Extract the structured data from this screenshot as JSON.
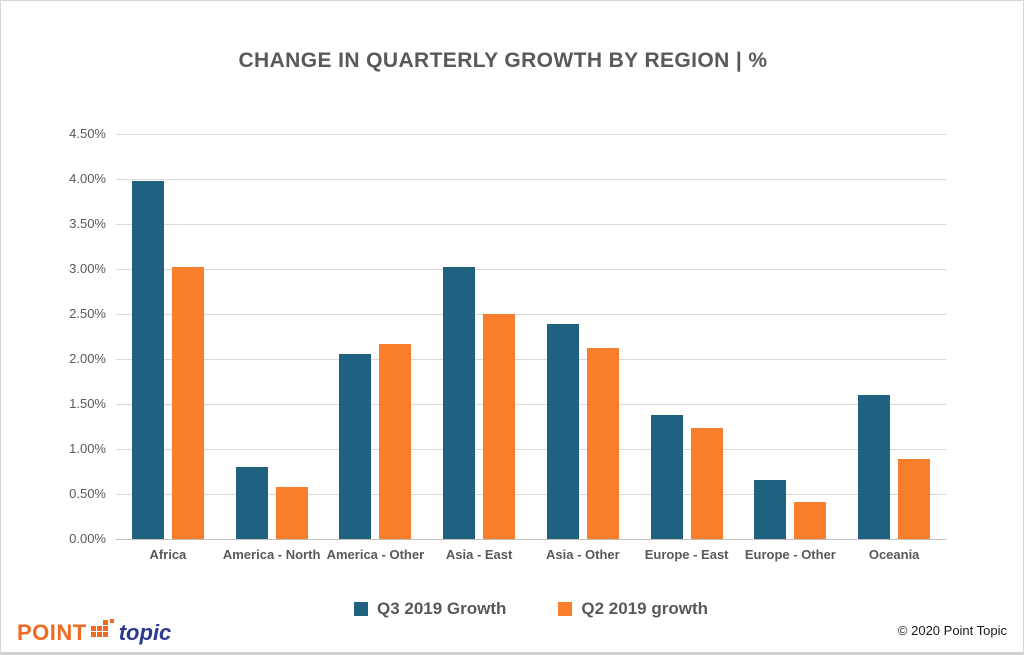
{
  "page": {
    "title": "CHANGE IN QUARTERLY GROWTH BY REGION | %"
  },
  "chart_data": {
    "type": "bar",
    "title": "CHANGE IN QUARTERLY GROWTH BY REGION | %",
    "categories": [
      "Africa",
      "America - North",
      "America - Other",
      "Asia - East",
      "Asia - Other",
      "Europe - East",
      "Europe - Other",
      "Oceania"
    ],
    "series": [
      {
        "name": "Q3 2019 Growth",
        "color": "#1f617f",
        "values": [
          3.98,
          0.8,
          2.06,
          3.02,
          2.39,
          1.38,
          0.66,
          1.6
        ]
      },
      {
        "name": "Q2 2019 growth",
        "color": "#f87e2b",
        "values": [
          3.02,
          0.58,
          2.17,
          2.5,
          2.12,
          1.23,
          0.41,
          0.89
        ]
      }
    ],
    "xlabel": "",
    "ylabel": "",
    "ylim": [
      0,
      4.5
    ],
    "ytick_step": 0.5,
    "ytick_labels": [
      "0.00%",
      "0.50%",
      "1.00%",
      "1.50%",
      "2.00%",
      "2.50%",
      "3.00%",
      "3.50%",
      "4.00%",
      "4.50%"
    ],
    "grid": "horizontal",
    "legend_position": "bottom-center"
  },
  "colors": {
    "q3_teal": "#1f617f",
    "q2_orange": "#f87e2b",
    "gridline": "#d9d9d9",
    "text_gray": "#595959",
    "logo_orange": "#f26a21",
    "logo_navy": "#2b3990"
  },
  "footer": {
    "logo_point": "POINT",
    "logo_topic": "topic",
    "copyright": "© 2020 Point Topic"
  }
}
